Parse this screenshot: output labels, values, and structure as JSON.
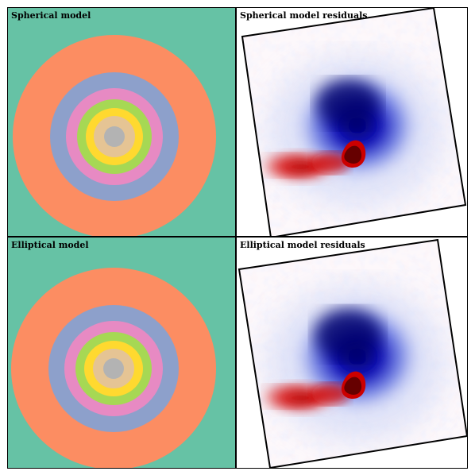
{
  "panels": {
    "spherical_model": {
      "title": "Spherical model"
    },
    "spherical_residuals": {
      "title": "Spherical model residuals"
    },
    "elliptical_model": {
      "title": "Elliptical model"
    },
    "elliptical_residuals": {
      "title": "Elliptical model residuals"
    }
  },
  "colors": {
    "model_background": "#66c2a5",
    "rings": [
      "#fc8d62",
      "#8da0cb",
      "#e78ac3",
      "#a6d854",
      "#ffd92f",
      "#e5c494",
      "#b3b3b3"
    ],
    "residual_positive": "#cc0000",
    "residual_negative": "#0000aa",
    "residual_background": "#fdf8fb",
    "frame": "#000000"
  }
}
